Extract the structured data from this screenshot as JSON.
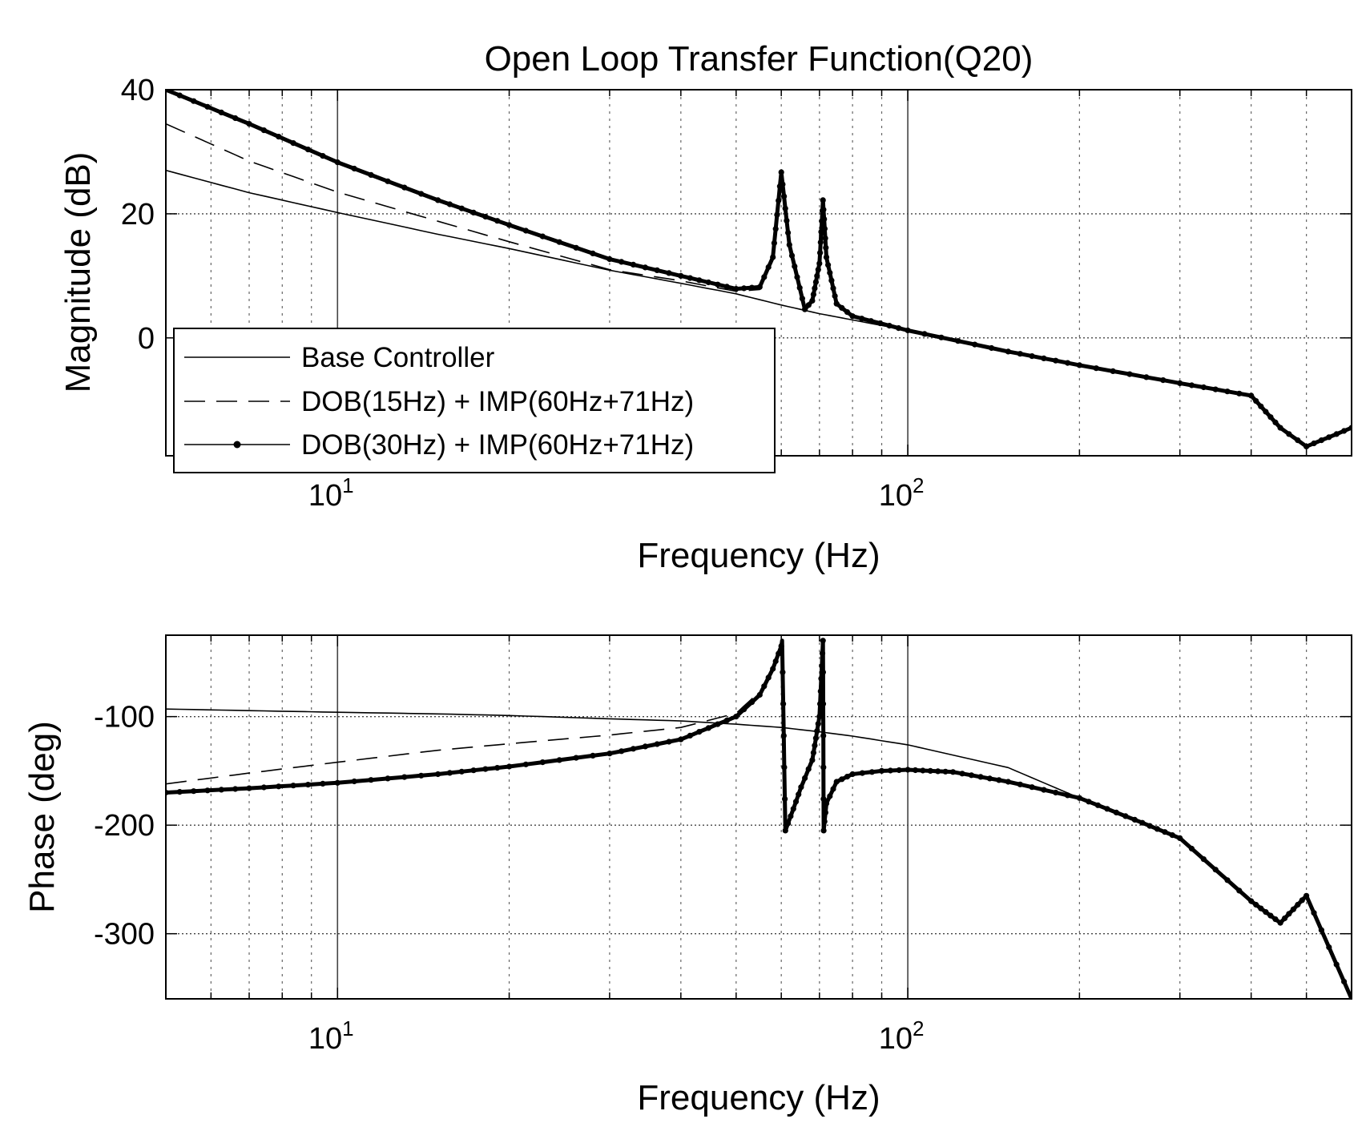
{
  "chart_data": [
    {
      "type": "line",
      "title": "Open Loop Transfer Function(Q20)",
      "xlabel": "Frequency (Hz)",
      "ylabel": "Magnitude (dB)",
      "xscale": "log",
      "xlim": [
        5,
        600
      ],
      "ylim": [
        -19,
        40
      ],
      "yticks": [
        0,
        20,
        40
      ],
      "ytick_labels": [
        "0",
        "20",
        "40"
      ],
      "xticks": [
        10,
        100
      ],
      "xtick_labels": [
        {
          "base": "10",
          "exp": "1"
        },
        {
          "base": "10",
          "exp": "2"
        }
      ],
      "grid": true,
      "legend": {
        "placement": "lower-left",
        "entries": [
          "Base Controller",
          "DOB(15Hz) + IMP(60Hz+71Hz)",
          "DOB(30Hz) + IMP(60Hz+71Hz)"
        ]
      },
      "series": [
        {
          "name": "Base Controller",
          "style": "thin-solid",
          "x": [
            5,
            7,
            10,
            15,
            20,
            30,
            40,
            50,
            60,
            70,
            80,
            100,
            150,
            200,
            300,
            400,
            450,
            500,
            600
          ],
          "y": [
            27,
            23.4,
            20.2,
            16.7,
            14.4,
            10.9,
            8.8,
            7.1,
            5.3,
            3.9,
            2.9,
            1.2,
            -2.2,
            -4.4,
            -7.3,
            -9.3,
            -14.5,
            -17.5,
            -14.5
          ]
        },
        {
          "name": "DOB(15Hz) + IMP(60Hz+71Hz)",
          "style": "dashed",
          "x": [
            5,
            7,
            10,
            15,
            20,
            30,
            40,
            50,
            55,
            58,
            60,
            62,
            66,
            68,
            70,
            71,
            72,
            75,
            80,
            100,
            150,
            200,
            300,
            400,
            450,
            500,
            600
          ],
          "y": [
            34.5,
            28.5,
            23.5,
            18.8,
            15.5,
            11.0,
            9.2,
            7.5,
            7.8,
            13,
            26.7,
            15,
            4.6,
            6,
            12,
            22.2,
            13,
            5.5,
            3.5,
            1.2,
            -2.2,
            -4.4,
            -7.3,
            -9.3,
            -14.5,
            -17.5,
            -14.5
          ]
        },
        {
          "name": "DOB(30Hz) + IMP(60Hz+71Hz)",
          "style": "thick-dotted",
          "x": [
            5,
            7,
            10,
            15,
            20,
            30,
            40,
            50,
            55,
            58,
            60,
            62,
            66,
            68,
            70,
            71,
            72,
            75,
            80,
            100,
            150,
            200,
            300,
            400,
            450,
            500,
            600
          ],
          "y": [
            40,
            34.5,
            28.3,
            22.2,
            18.2,
            12.7,
            10.0,
            7.9,
            8.2,
            13,
            26.7,
            15,
            4.6,
            6,
            12,
            22.2,
            13,
            5.5,
            3.5,
            1.2,
            -2.2,
            -4.4,
            -7.3,
            -9.3,
            -14.5,
            -17.5,
            -14.5
          ]
        }
      ]
    },
    {
      "type": "line",
      "title": "",
      "xlabel": "Frequency (Hz)",
      "ylabel": "Phase (deg)",
      "xscale": "log",
      "xlim": [
        5,
        600
      ],
      "ylim": [
        -360,
        -25
      ],
      "yticks": [
        -100,
        -200,
        -300
      ],
      "ytick_labels": [
        "-100",
        "-200",
        "-300"
      ],
      "xticks": [
        10,
        100
      ],
      "xtick_labels": [
        {
          "base": "10",
          "exp": "1"
        },
        {
          "base": "10",
          "exp": "2"
        }
      ],
      "grid": true,
      "series": [
        {
          "name": "Base Controller",
          "style": "thin-solid",
          "x": [
            5,
            7,
            10,
            15,
            20,
            30,
            40,
            50,
            60,
            70,
            80,
            100,
            150,
            200,
            250,
            300,
            400,
            450,
            500,
            600
          ],
          "y": [
            -93,
            -94.5,
            -96,
            -97.5,
            -99,
            -102,
            -104,
            -107,
            -110,
            -114,
            -118,
            -126,
            -147,
            -175,
            -195,
            -212,
            -270,
            -290,
            -265,
            -360
          ]
        },
        {
          "name": "DOB(15Hz) + IMP(60Hz+71Hz)",
          "style": "dashed",
          "x": [
            5,
            7,
            10,
            15,
            20,
            30,
            40,
            50,
            55,
            58,
            60,
            60.2,
            61,
            63,
            65,
            68,
            70,
            71,
            71.2,
            72,
            75,
            80,
            90,
            100,
            120,
            150,
            200,
            250,
            300,
            400,
            450,
            500,
            600
          ],
          "y": [
            -162,
            -152,
            -142,
            -131,
            -125,
            -117,
            -110,
            -97,
            -77,
            -56,
            -35,
            -30,
            -205,
            -185,
            -165,
            -140,
            -100,
            -30,
            -205,
            -180,
            -160,
            -153,
            -150,
            -149,
            -151,
            -160,
            -175,
            -195,
            -212,
            -270,
            -290,
            -265,
            -360
          ]
        },
        {
          "name": "DOB(30Hz) + IMP(60Hz+71Hz)",
          "style": "thick-dotted",
          "x": [
            5,
            7,
            10,
            15,
            20,
            30,
            40,
            50,
            55,
            58,
            60,
            60.2,
            61,
            63,
            65,
            68,
            70,
            71,
            71.2,
            72,
            75,
            80,
            90,
            100,
            120,
            150,
            200,
            250,
            300,
            400,
            450,
            500,
            600
          ],
          "y": [
            -170,
            -166,
            -161,
            -153,
            -146,
            -134,
            -121,
            -100,
            -80,
            -56,
            -35,
            -30,
            -205,
            -185,
            -165,
            -140,
            -100,
            -30,
            -205,
            -180,
            -160,
            -153,
            -150,
            -149,
            -151,
            -160,
            -175,
            -195,
            -212,
            -270,
            -290,
            -265,
            -360
          ]
        }
      ]
    }
  ]
}
